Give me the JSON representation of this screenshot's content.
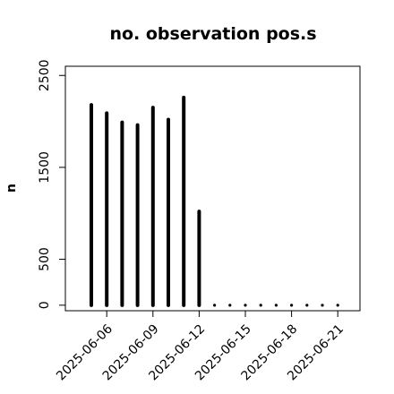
{
  "chart_data": {
    "type": "bar",
    "title": "no. observation pos.s",
    "xlabel": "",
    "ylabel": "n",
    "x": [
      "2025-06-05",
      "2025-06-06",
      "2025-06-07",
      "2025-06-08",
      "2025-06-09",
      "2025-06-10",
      "2025-06-11",
      "2025-06-12",
      "2025-06-13",
      "2025-06-14",
      "2025-06-15",
      "2025-06-16",
      "2025-06-17",
      "2025-06-18",
      "2025-06-19",
      "2025-06-20",
      "2025-06-21"
    ],
    "values": [
      2180,
      2090,
      1990,
      1960,
      2150,
      2020,
      2260,
      1020,
      0,
      0,
      0,
      0,
      0,
      0,
      0,
      0,
      0
    ],
    "ylim": [
      -60,
      2600
    ],
    "yticks": [
      0,
      500,
      1500,
      2500
    ],
    "yticklabels": [
      "0",
      "500",
      "1500",
      "2500"
    ],
    "xticks": [
      "2025-06-06",
      "2025-06-09",
      "2025-06-12",
      "2025-06-15",
      "2025-06-18",
      "2025-06-21"
    ],
    "xticklabels": [
      "2025-06-06",
      "2025-06-09",
      "2025-06-12",
      "2025-06-15",
      "2025-06-18",
      "2025-06-21"
    ],
    "highlight_tick": "2025-06-12",
    "colors": {
      "bars": "#000000",
      "highlight_tick": "#228b22",
      "text": "#000000"
    },
    "grid": false,
    "legend": "none"
  }
}
